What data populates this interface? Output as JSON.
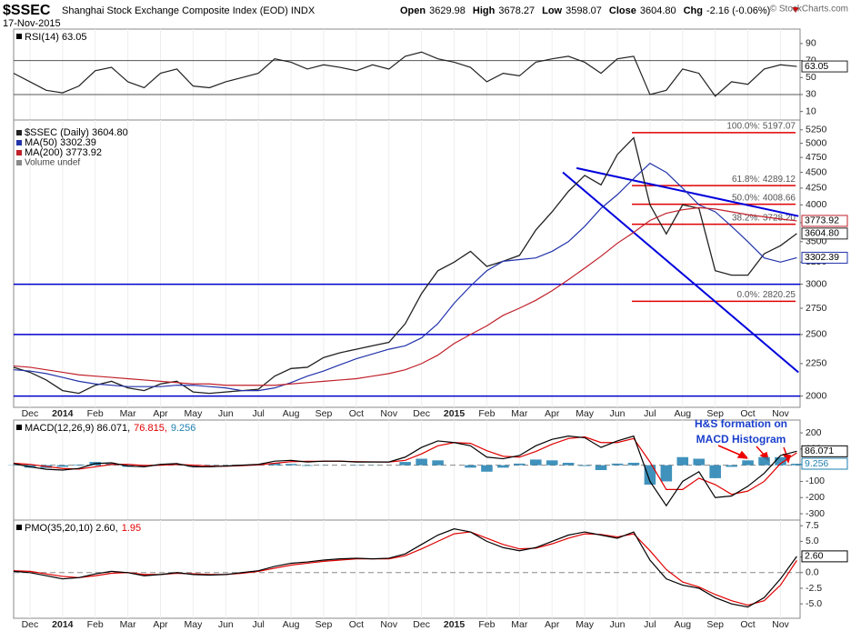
{
  "header": {
    "symbol": "$SSEC",
    "name": "Shanghai Stock Exchange Composite Index (EOD) INDX",
    "date": "17-Nov-2015",
    "quote": [
      {
        "label": "Open",
        "value": "3629.98"
      },
      {
        "label": "High",
        "value": "3678.27"
      },
      {
        "label": "Low",
        "value": "3598.07"
      },
      {
        "label": "Close",
        "value": "3604.80"
      },
      {
        "label": "Chg",
        "value": "-2.16 (-0.06%)"
      }
    ],
    "credit": "© StockCharts.com"
  },
  "chart_data": [
    {
      "type": "line",
      "legend": [
        {
          "text": "RSI(14) 63.05",
          "color": "#000000"
        }
      ],
      "x": [
        -0.5,
        0,
        0.5,
        1,
        1.5,
        2,
        2.5,
        3,
        3.5,
        4,
        4.5,
        5,
        5.5,
        6,
        6.5,
        7,
        7.5,
        8,
        8.5,
        9,
        9.5,
        10,
        10.5,
        11,
        11.5,
        12,
        12.5,
        13,
        13.5,
        14,
        14.5,
        15,
        15.5,
        16,
        16.5,
        17,
        17.5,
        18,
        18.5,
        19,
        19.5,
        20,
        20.5,
        21,
        21.5,
        22,
        22.5,
        23,
        23.5
      ],
      "xlim": [
        -0.5,
        23.6
      ],
      "ylim": [
        0,
        107
      ],
      "yticks": [
        10,
        30,
        50,
        70,
        90
      ],
      "hlines": [
        70,
        30
      ],
      "hline_color": "#555555",
      "series": [
        {
          "color": "#222222",
          "last_label": "63.05",
          "values": [
            55,
            45,
            35,
            32,
            40,
            58,
            62,
            45,
            38,
            55,
            60,
            40,
            38,
            45,
            50,
            55,
            72,
            68,
            60,
            65,
            62,
            58,
            65,
            60,
            75,
            80,
            72,
            68,
            62,
            45,
            55,
            52,
            68,
            72,
            75,
            68,
            55,
            72,
            75,
            30,
            35,
            60,
            55,
            28,
            45,
            42,
            60,
            65,
            63.05
          ]
        }
      ]
    },
    {
      "type": "line",
      "log": true,
      "x": [
        -0.5,
        0,
        0.5,
        1,
        1.5,
        2,
        2.5,
        3,
        3.5,
        4,
        4.5,
        5,
        5.5,
        6,
        6.5,
        7,
        7.5,
        8,
        8.5,
        9,
        9.5,
        10,
        10.5,
        11,
        11.5,
        12,
        12.5,
        13,
        13.5,
        14,
        14.5,
        15,
        15.5,
        16,
        16.5,
        17,
        17.5,
        18,
        18.5,
        19,
        19.5,
        20,
        20.5,
        21,
        21.5,
        22,
        22.5,
        23,
        23.5
      ],
      "xlim": [
        -0.5,
        23.6
      ],
      "ylim": [
        1920,
        5440
      ],
      "xticks": [
        {
          "value": 0,
          "label": "Dec"
        },
        {
          "value": 1,
          "label": "2014"
        },
        {
          "value": 2,
          "label": "Feb"
        },
        {
          "value": 3,
          "label": "Mar"
        },
        {
          "value": 4,
          "label": "Apr"
        },
        {
          "value": 5,
          "label": "May"
        },
        {
          "value": 6,
          "label": "Jun"
        },
        {
          "value": 7,
          "label": "Jul"
        },
        {
          "value": 8,
          "label": "Aug"
        },
        {
          "value": 9,
          "label": "Sep"
        },
        {
          "value": 10,
          "label": "Oct"
        },
        {
          "value": 11,
          "label": "Nov"
        },
        {
          "value": 12,
          "label": "Dec"
        },
        {
          "value": 13,
          "label": "2015"
        },
        {
          "value": 14,
          "label": "Feb"
        },
        {
          "value": 15,
          "label": "Mar"
        },
        {
          "value": 16,
          "label": "Apr"
        },
        {
          "value": 17,
          "label": "May"
        },
        {
          "value": 18,
          "label": "Jun"
        },
        {
          "value": 19,
          "label": "Jul"
        },
        {
          "value": 20,
          "label": "Aug"
        },
        {
          "value": 21,
          "label": "Sep"
        },
        {
          "value": 22,
          "label": "Oct"
        },
        {
          "value": 23,
          "label": "Nov"
        }
      ],
      "yticks": [
        2000,
        2250,
        2500,
        2750,
        3000,
        3250,
        3500,
        3750,
        4000,
        4250,
        4500,
        4750,
        5000,
        5250
      ],
      "hlines": [
        3000,
        2500,
        2000
      ],
      "hline_color": "#0000cc",
      "extra_legend": "Volume undef",
      "series": [
        {
          "name": "$SSEC (Daily) 3604.80",
          "color": "#222222",
          "last_label": "3604.80",
          "values": [
            2220,
            2180,
            2120,
            2040,
            2020,
            2080,
            2110,
            2060,
            2040,
            2090,
            2110,
            2030,
            2020,
            2030,
            2040,
            2050,
            2150,
            2210,
            2220,
            2300,
            2340,
            2370,
            2400,
            2430,
            2600,
            2900,
            3150,
            3250,
            3380,
            3200,
            3260,
            3330,
            3650,
            3900,
            4200,
            4450,
            4300,
            4800,
            5100,
            4000,
            3600,
            4000,
            3950,
            3150,
            3100,
            3100,
            3350,
            3450,
            3604.8
          ]
        },
        {
          "name": "MA(50) 3302.39",
          "color": "#2233aa",
          "last_label": "3302.39",
          "values": [
            2200,
            2190,
            2170,
            2140,
            2110,
            2090,
            2080,
            2070,
            2070,
            2070,
            2080,
            2080,
            2070,
            2060,
            2040,
            2040,
            2060,
            2100,
            2150,
            2190,
            2240,
            2290,
            2330,
            2370,
            2400,
            2470,
            2600,
            2800,
            2980,
            3150,
            3260,
            3280,
            3300,
            3380,
            3500,
            3700,
            3950,
            4150,
            4400,
            4650,
            4500,
            4250,
            4000,
            3900,
            3700,
            3500,
            3300,
            3250,
            3302.39
          ]
        },
        {
          "name": "MA(200) 3773.92",
          "color": "#c0202a",
          "last_label": "3773.92",
          "values": [
            2230,
            2220,
            2200,
            2180,
            2160,
            2150,
            2140,
            2130,
            2120,
            2110,
            2100,
            2090,
            2090,
            2080,
            2080,
            2080,
            2080,
            2090,
            2100,
            2110,
            2120,
            2130,
            2150,
            2170,
            2200,
            2250,
            2320,
            2420,
            2500,
            2580,
            2680,
            2750,
            2830,
            2930,
            3050,
            3180,
            3320,
            3480,
            3620,
            3780,
            3880,
            3930,
            3960,
            3940,
            3900,
            3860,
            3830,
            3800,
            3773.92
          ]
        }
      ],
      "trendlines": [
        {
          "x": [
            16.75,
            23.55
          ],
          "values": [
            4570,
            3840
          ]
        },
        {
          "x": [
            16.33,
            23.55
          ],
          "values": [
            4500,
            2180
          ]
        }
      ],
      "trendline_color": "#0000dd",
      "levels": [
        {
          "label": "100.0%: 5197.07",
          "value": 5197.07
        },
        {
          "label": "61.8%: 4289.12",
          "value": 4289.12
        },
        {
          "label": "50.0%: 4008.66",
          "value": 4008.66
        },
        {
          "label": "38.2%: 3728.20",
          "value": 3728.2
        },
        {
          "label": "0.0%: 2820.25",
          "value": 2820.25
        }
      ],
      "level_color": "#e00000"
    },
    {
      "type": "line",
      "legend": [
        {
          "text": "MACD(12,26,9) 86.071,",
          "color": "#000000"
        },
        {
          "text": "76.815,",
          "color": "#e00000"
        },
        {
          "text": "9.256",
          "color": "#1f7fb0"
        }
      ],
      "annotation": [
        "H&S formation on",
        "MACD Histogram"
      ],
      "x": [
        -0.5,
        0,
        0.5,
        1,
        1.5,
        2,
        2.5,
        3,
        3.5,
        4,
        4.5,
        5,
        5.5,
        6,
        6.5,
        7,
        7.5,
        8,
        8.5,
        9,
        9.5,
        10,
        10.5,
        11,
        11.5,
        12,
        12.5,
        13,
        13.5,
        14,
        14.5,
        15,
        15.5,
        16,
        16.5,
        17,
        17.5,
        18,
        18.5,
        19,
        19.5,
        20,
        20.5,
        21,
        21.5,
        22,
        22.5,
        23,
        23.5
      ],
      "xlim": [
        -0.5,
        23.6
      ],
      "ylim": [
        -339,
        279
      ],
      "yticks": [
        -300,
        -200,
        -100,
        100,
        200
      ],
      "hlines": [
        0
      ],
      "hline_color": "#888888",
      "series": [
        {
          "style": "bar",
          "color": "#1f7fb0",
          "last_label": "9.256",
          "values": [
            -2,
            -15,
            -17,
            -10,
            4,
            20,
            10,
            -10,
            -8,
            5,
            5,
            -10,
            -5,
            1,
            3,
            3,
            13,
            8,
            -4,
            1,
            0,
            -2,
            -1,
            0,
            20,
            40,
            30,
            0,
            -15,
            -40,
            -15,
            10,
            35,
            30,
            15,
            -5,
            -30,
            10,
            15,
            -120,
            -100,
            50,
            40,
            -80,
            -10,
            30,
            50,
            50,
            9.256
          ]
        },
        {
          "color": "#e00000",
          "values": [
            12,
            5,
            -8,
            -20,
            -24,
            -10,
            5,
            5,
            -2,
            0,
            5,
            0,
            -5,
            -6,
            -3,
            2,
            12,
            22,
            24,
            24,
            25,
            22,
            21,
            20,
            30,
            70,
            120,
            140,
            135,
            90,
            55,
            50,
            85,
            130,
            165,
            175,
            140,
            140,
            165,
            20,
            -150,
            -150,
            -80,
            -120,
            -180,
            -160,
            -100,
            10,
            76.815
          ]
        },
        {
          "color": "#000000",
          "last_label": "86.071",
          "values": [
            10,
            -10,
            -25,
            -30,
            -20,
            10,
            15,
            -5,
            -10,
            5,
            10,
            -10,
            -10,
            -5,
            0,
            5,
            25,
            30,
            20,
            25,
            25,
            20,
            20,
            20,
            50,
            110,
            150,
            140,
            120,
            50,
            40,
            60,
            120,
            160,
            180,
            170,
            110,
            150,
            180,
            -100,
            -250,
            -100,
            -40,
            -200,
            -190,
            -130,
            -50,
            60,
            86.071
          ]
        }
      ]
    },
    {
      "type": "line",
      "legend": [
        {
          "text": "PMO(35,20,10) 2.60,",
          "color": "#000000"
        },
        {
          "text": "1.95",
          "color": "#e00000"
        }
      ],
      "x": [
        -0.5,
        0,
        0.5,
        1,
        1.5,
        2,
        2.5,
        3,
        3.5,
        4,
        4.5,
        5,
        5.5,
        6,
        6.5,
        7,
        7.5,
        8,
        8.5,
        9,
        9.5,
        10,
        10.5,
        11,
        11.5,
        12,
        12.5,
        13,
        13.5,
        14,
        14.5,
        15,
        15.5,
        16,
        16.5,
        17,
        17.5,
        18,
        18.5,
        19,
        19.5,
        20,
        20.5,
        21,
        21.5,
        22,
        22.5,
        23,
        23.5
      ],
      "xlim": [
        -0.5,
        23.6
      ],
      "ylim": [
        -7.3,
        8.4
      ],
      "xticks": [
        {
          "value": 0,
          "label": "Dec"
        },
        {
          "value": 1,
          "label": "2014"
        },
        {
          "value": 2,
          "label": "Feb"
        },
        {
          "value": 3,
          "label": "Mar"
        },
        {
          "value": 4,
          "label": "Apr"
        },
        {
          "value": 5,
          "label": "May"
        },
        {
          "value": 6,
          "label": "Jun"
        },
        {
          "value": 7,
          "label": "Jul"
        },
        {
          "value": 8,
          "label": "Aug"
        },
        {
          "value": 9,
          "label": "Sep"
        },
        {
          "value": 10,
          "label": "Oct"
        },
        {
          "value": 11,
          "label": "Nov"
        },
        {
          "value": 12,
          "label": "Dec"
        },
        {
          "value": 13,
          "label": "2015"
        },
        {
          "value": 14,
          "label": "Feb"
        },
        {
          "value": 15,
          "label": "Mar"
        },
        {
          "value": 16,
          "label": "Apr"
        },
        {
          "value": 17,
          "label": "May"
        },
        {
          "value": 18,
          "label": "Jun"
        },
        {
          "value": 19,
          "label": "Jul"
        },
        {
          "value": 20,
          "label": "Aug"
        },
        {
          "value": 21,
          "label": "Sep"
        },
        {
          "value": 22,
          "label": "Oct"
        },
        {
          "value": 23,
          "label": "Nov"
        }
      ],
      "yticks": [
        {
          "value": -5,
          "label": "-5.0"
        },
        -2.5,
        {
          "value": 0,
          "label": "0.0"
        },
        2.5,
        {
          "value": 5,
          "label": "5.0"
        },
        7.5
      ],
      "hlines": [
        0
      ],
      "hline_color": "#888888",
      "series": [
        {
          "color": "#e00000",
          "values": [
            0.3,
            0.2,
            -0.2,
            -0.6,
            -0.8,
            -0.5,
            -0.1,
            0,
            -0.3,
            -0.3,
            -0.1,
            -0.2,
            -0.3,
            -0.3,
            -0.1,
            0.2,
            0.7,
            1.2,
            1.5,
            1.8,
            2,
            2.2,
            2.2,
            2.2,
            2.7,
            3.8,
            5,
            6.2,
            6.5,
            5.5,
            4.5,
            3.8,
            3.9,
            4.6,
            5.5,
            6.2,
            6.1,
            5.7,
            6.2,
            3.5,
            0.5,
            -1.5,
            -2.3,
            -3.5,
            -4.5,
            -5.2,
            -4.5,
            -2,
            1.95
          ]
        },
        {
          "color": "#000000",
          "last_label": "2.60",
          "values": [
            0.2,
            0,
            -0.5,
            -1,
            -0.8,
            -0.2,
            0.2,
            0,
            -0.5,
            -0.3,
            0,
            -0.3,
            -0.4,
            -0.3,
            0,
            0.3,
            1,
            1.5,
            1.7,
            2,
            2.2,
            2.3,
            2.2,
            2.3,
            3,
            4.5,
            6,
            7,
            6.5,
            5,
            4,
            3.5,
            4,
            5,
            6,
            6.5,
            6,
            5.5,
            6.5,
            2,
            -1,
            -2,
            -2.5,
            -4,
            -5,
            -5.5,
            -4,
            -1,
            2.6
          ]
        }
      ]
    }
  ]
}
